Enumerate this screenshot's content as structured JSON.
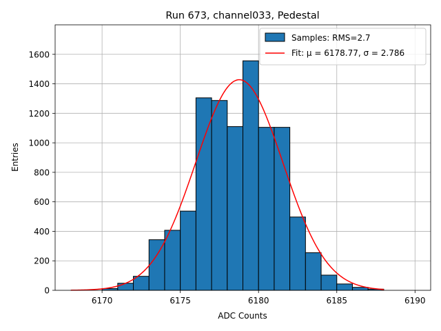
{
  "chart_data": {
    "type": "bar",
    "title": "Run 673, channel033, Pedestal",
    "xlabel": "ADC Counts",
    "ylabel": "Entries",
    "xlim": [
      6167.0,
      6191.0
    ],
    "ylim": [
      0,
      1800
    ],
    "xticks": [
      6170,
      6175,
      6180,
      6185,
      6190
    ],
    "yticks": [
      0,
      200,
      400,
      600,
      800,
      1000,
      1200,
      1400,
      1600
    ],
    "grid": true,
    "legend_position": "top-right",
    "bin_width": 1,
    "bin_edges_start": 6168,
    "bins": [
      {
        "x0": 6168,
        "x1": 6169,
        "count": 0
      },
      {
        "x0": 6169,
        "x1": 6170,
        "count": 0
      },
      {
        "x0": 6170,
        "x1": 6171,
        "count": 12
      },
      {
        "x0": 6171,
        "x1": 6172,
        "count": 48
      },
      {
        "x0": 6172,
        "x1": 6173,
        "count": 95
      },
      {
        "x0": 6173,
        "x1": 6174,
        "count": 343
      },
      {
        "x0": 6174,
        "x1": 6175,
        "count": 407
      },
      {
        "x0": 6175,
        "x1": 6176,
        "count": 537
      },
      {
        "x0": 6176,
        "x1": 6177,
        "count": 1305
      },
      {
        "x0": 6177,
        "x1": 6178,
        "count": 1287
      },
      {
        "x0": 6178,
        "x1": 6179,
        "count": 1110
      },
      {
        "x0": 6179,
        "x1": 6180,
        "count": 1556
      },
      {
        "x0": 6180,
        "x1": 6181,
        "count": 1105
      },
      {
        "x0": 6181,
        "x1": 6182,
        "count": 1105
      },
      {
        "x0": 6182,
        "x1": 6183,
        "count": 497
      },
      {
        "x0": 6183,
        "x1": 6184,
        "count": 255
      },
      {
        "x0": 6184,
        "x1": 6185,
        "count": 103
      },
      {
        "x0": 6185,
        "x1": 6186,
        "count": 43
      },
      {
        "x0": 6186,
        "x1": 6187,
        "count": 20
      },
      {
        "x0": 6187,
        "x1": 6188,
        "count": 8
      }
    ],
    "fit": {
      "mu": 6178.77,
      "sigma": 2.786,
      "amplitude": 1428,
      "x_range": [
        6168,
        6188
      ]
    },
    "series": [
      {
        "name": "Samples: RMS=2.7",
        "kind": "histogram",
        "color": "#1f77b4",
        "edge_color": "#000000"
      },
      {
        "name": "Fit: μ = 6178.77, σ = 2.786",
        "kind": "line",
        "color": "#ff0000"
      }
    ]
  }
}
